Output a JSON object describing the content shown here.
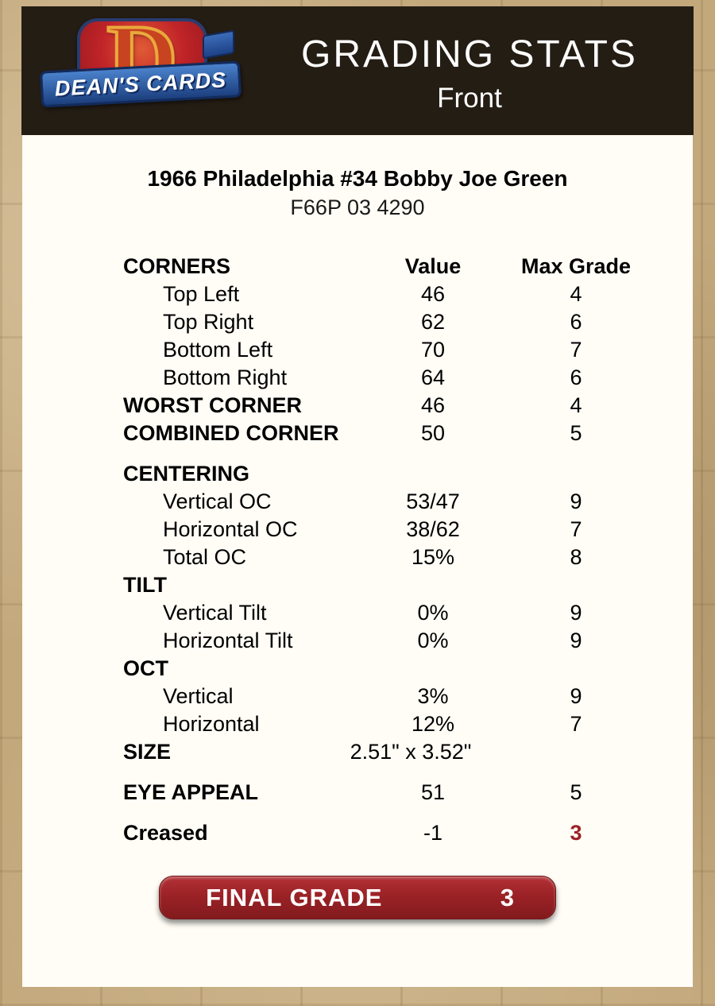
{
  "header": {
    "logo": {
      "name": "DEAN'S CARDS",
      "letter": "D"
    },
    "title": "GRADING STATS",
    "subtitle": "Front"
  },
  "card": {
    "title": "1966 Philadelphia #34 Bobby Joe Green",
    "code": "F66P 03 4290"
  },
  "table": {
    "rows": [
      {
        "label": "CORNERS",
        "value": "Value",
        "max": "Max Grade"
      },
      {
        "label": "Top Left",
        "value": "46",
        "max": "4"
      },
      {
        "label": "Top Right",
        "value": "62",
        "max": "6"
      },
      {
        "label": "Bottom Left",
        "value": "70",
        "max": "7"
      },
      {
        "label": "Bottom Right",
        "value": "64",
        "max": "6"
      },
      {
        "label": "WORST CORNER",
        "value": "46",
        "max": "4"
      },
      {
        "label": "COMBINED CORNER",
        "value": "50",
        "max": "5"
      },
      {
        "label": "CENTERING",
        "value": "",
        "max": ""
      },
      {
        "label": "Vertical OC",
        "value": "53/47",
        "max": "9"
      },
      {
        "label": "Horizontal OC",
        "value": "38/62",
        "max": "7"
      },
      {
        "label": "Total OC",
        "value": "15%",
        "max": "8"
      },
      {
        "label": "TILT",
        "value": "",
        "max": ""
      },
      {
        "label": "Vertical Tilt",
        "value": "0%",
        "max": "9"
      },
      {
        "label": "Horizontal Tilt",
        "value": "0%",
        "max": "9"
      },
      {
        "label": "OCT",
        "value": "",
        "max": ""
      },
      {
        "label": "Vertical",
        "value": "3%",
        "max": "9"
      },
      {
        "label": "Horizontal",
        "value": "12%",
        "max": "7"
      },
      {
        "label": "SIZE",
        "value": "2.51\" x 3.52\"",
        "max": ""
      },
      {
        "label": "EYE APPEAL",
        "value": "51",
        "max": "5"
      },
      {
        "label": "Creased",
        "value": "-1",
        "max": "3"
      }
    ]
  },
  "final_grade": {
    "label": "FINAL GRADE",
    "value": "3"
  },
  "colors": {
    "accent_red": "#9b2226",
    "header_bg": "#241d14",
    "page_bg": "#c3a87c",
    "card_bg": "#fffdf6"
  }
}
